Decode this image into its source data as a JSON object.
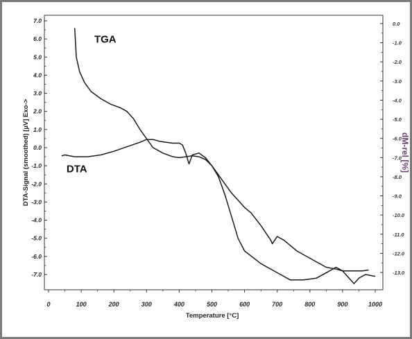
{
  "chart_data": {
    "type": "line",
    "xlabel": "Temperature [°C]",
    "ylabel_left": "DTA-Signal (smoothed) [µV] Exo->",
    "ylabel_right": "dM-rel [%]",
    "xlim": [
      0,
      1000
    ],
    "ylim_left": [
      -7.5,
      7.0
    ],
    "ylim_right": [
      -13.5,
      0.0
    ],
    "x_ticks": [
      "0",
      "100",
      "200",
      "300",
      "400",
      "500",
      "600",
      "700",
      "800",
      "900",
      "1000"
    ],
    "y_ticks_left": [
      "7.0",
      "6.0",
      "5.0",
      "4.0",
      "3.0",
      "2.0",
      "1.0",
      "0.0",
      "-1.0",
      "-2.0",
      "-3.0",
      "-4.0",
      "-5.0",
      "-6.0",
      "-7.0"
    ],
    "y_ticks_right": [
      "0.0",
      "-1.0",
      "-2.0",
      "-3.0",
      "-4.0",
      "-5.0",
      "-6.0",
      "-7.0",
      "-8.0",
      "-9.0",
      "-10.0",
      "-11.0",
      "-12.0",
      "-13.0"
    ],
    "grid": false,
    "series": [
      {
        "name": "TGA",
        "axis": "left",
        "x": [
          80,
          85,
          95,
          110,
          130,
          160,
          190,
          220,
          240,
          260,
          280,
          300,
          320,
          350,
          380,
          400,
          420,
          440,
          460,
          480,
          500,
          520,
          540,
          560,
          580,
          600,
          620,
          650,
          680,
          685,
          700,
          720,
          760,
          800,
          850,
          880,
          900,
          930,
          960,
          980
        ],
        "y": [
          6.6,
          5.0,
          4.2,
          3.6,
          3.1,
          2.7,
          2.4,
          2.2,
          2.0,
          1.6,
          1.0,
          0.5,
          0.0,
          -0.3,
          -0.5,
          -0.55,
          -0.5,
          -0.45,
          -0.5,
          -0.65,
          -1.0,
          -1.5,
          -2.0,
          -2.5,
          -2.9,
          -3.3,
          -3.6,
          -4.3,
          -5.1,
          -5.3,
          -4.9,
          -5.1,
          -5.7,
          -6.1,
          -6.6,
          -6.7,
          -6.8,
          -6.8,
          -6.8,
          -6.75
        ]
      },
      {
        "name": "DTA",
        "axis": "left",
        "x": [
          40,
          50,
          80,
          120,
          160,
          200,
          240,
          280,
          300,
          320,
          340,
          360,
          380,
          400,
          410,
          420,
          430,
          440,
          460,
          480,
          500,
          520,
          540,
          560,
          580,
          600,
          650,
          700,
          740,
          780,
          820,
          860,
          880,
          900,
          920,
          935,
          950,
          970,
          1000
        ],
        "y": [
          -0.45,
          -0.4,
          -0.5,
          -0.5,
          -0.4,
          -0.2,
          0.05,
          0.3,
          0.45,
          0.45,
          0.35,
          0.3,
          0.25,
          0.25,
          0.15,
          -0.3,
          -0.9,
          -0.4,
          -0.3,
          -0.55,
          -1.0,
          -1.6,
          -2.6,
          -3.8,
          -5.0,
          -5.7,
          -6.4,
          -6.9,
          -7.3,
          -7.3,
          -7.2,
          -6.8,
          -6.6,
          -6.8,
          -7.2,
          -7.5,
          -7.2,
          -7.0,
          -7.1
        ]
      }
    ],
    "annotations": [
      {
        "text": "TGA",
        "x": 140,
        "y": 5.8
      },
      {
        "text": "DTA",
        "x": 55,
        "y": -1.35
      }
    ]
  }
}
